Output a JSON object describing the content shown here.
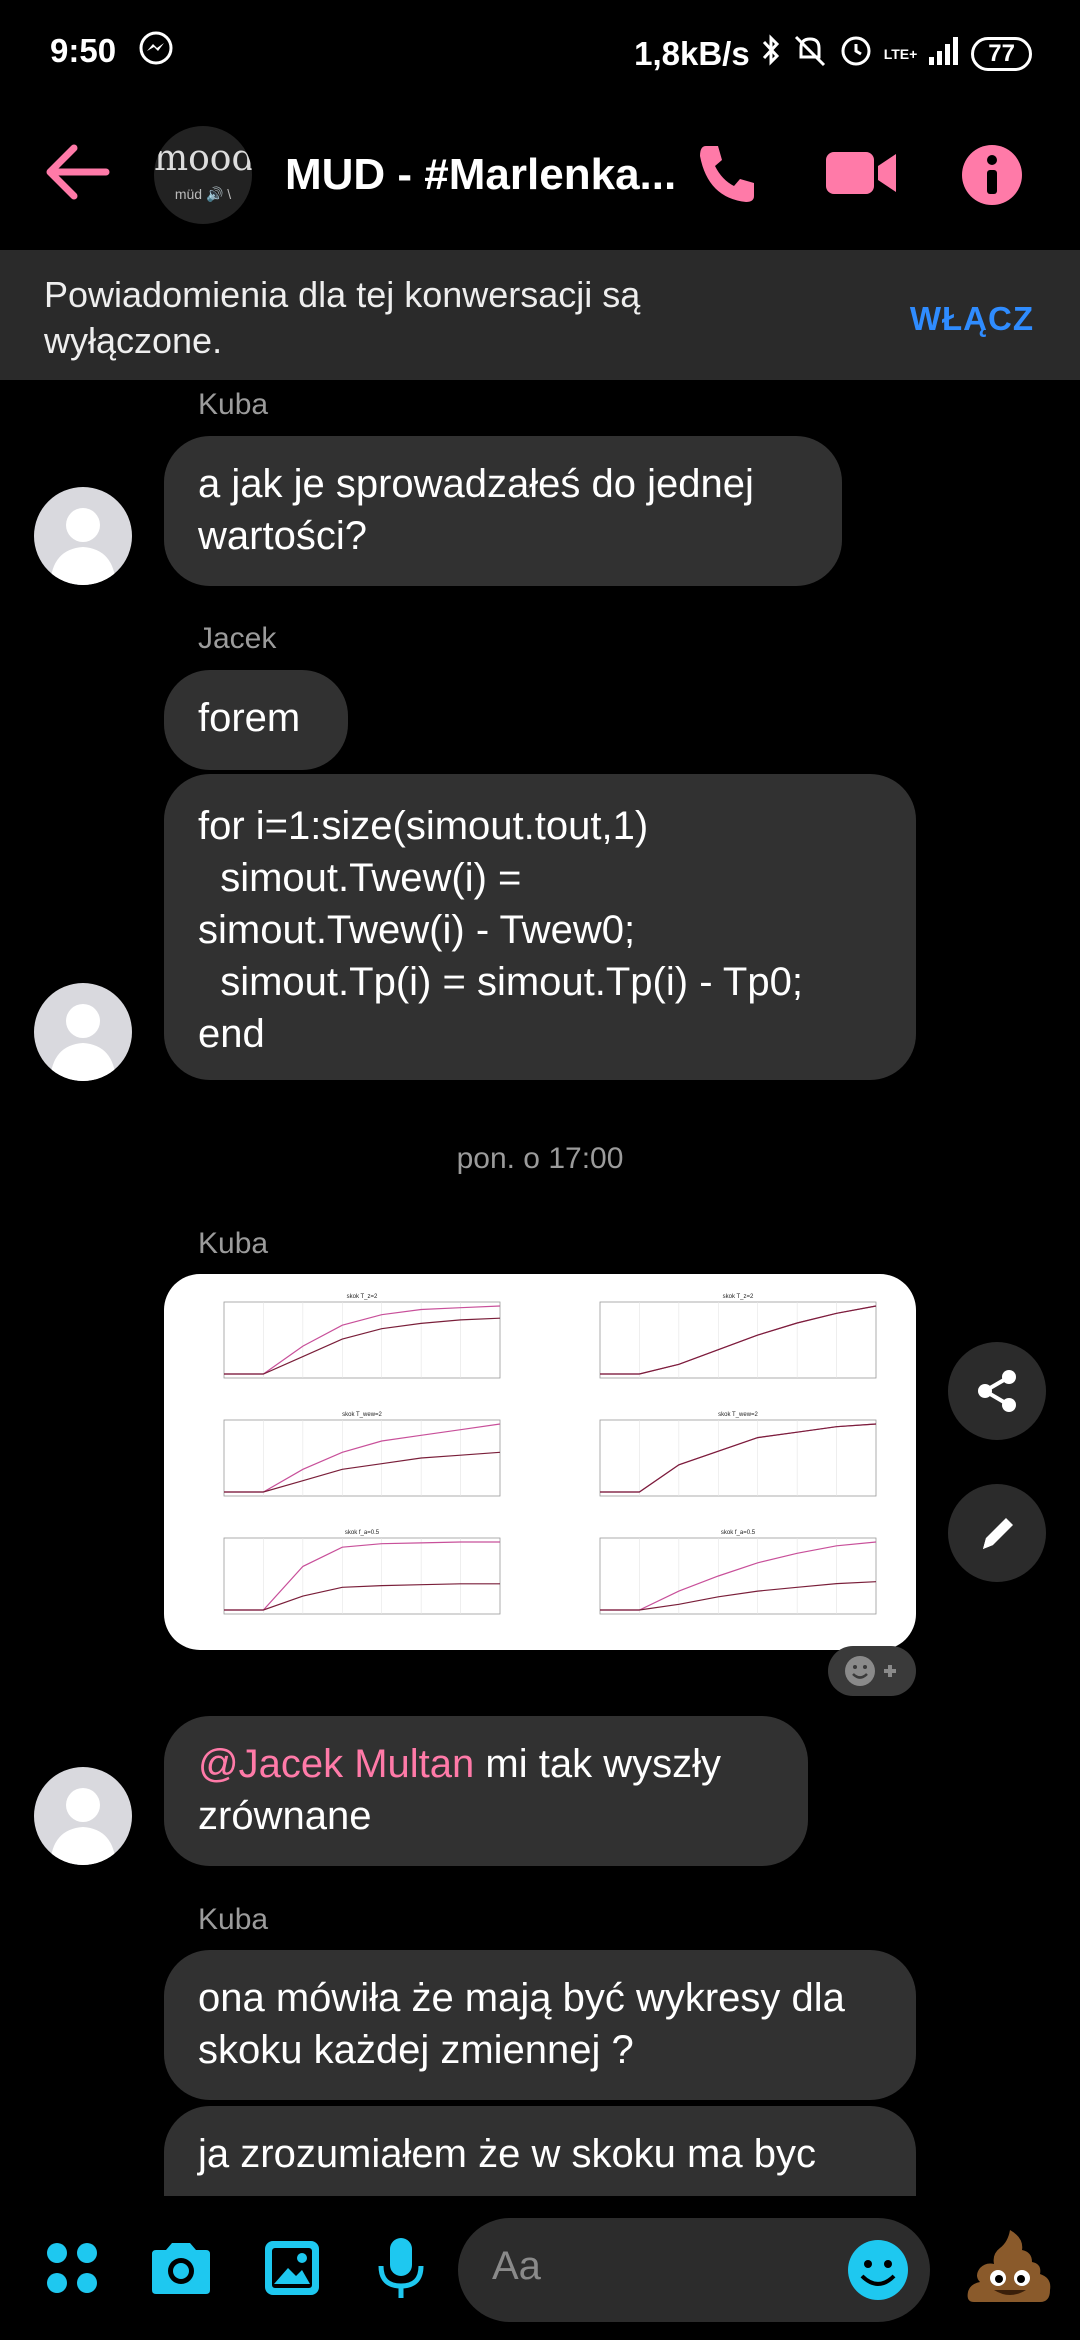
{
  "status_bar": {
    "time": "9:50",
    "network_speed": "1,8kB/s",
    "network_type": "LTE+",
    "battery": "77"
  },
  "header": {
    "title": "MUD - #Marlenka...",
    "avatar_top": "mood",
    "avatar_bottom": "müd 🔊 \\"
  },
  "banner": {
    "text": "Powiadomienia dla tej konwersacji są wyłączone.",
    "button": "WŁĄCZ"
  },
  "messages": {
    "sender_kuba_1": "Kuba",
    "msg1": "a jak je sprowadzałeś do jednej wartości?",
    "sender_jacek": "Jacek",
    "msg2": "forem",
    "msg3_lines": [
      "for i=1:size(simout.tout,1)",
      "  simout.Twew(i) =",
      "simout.Twew(i) - Twew0;",
      "  simout.Tp(i) = simout.Tp(i) - Tp0;",
      "end"
    ],
    "timestamp": "pon. o 17:00",
    "sender_kuba_2": "Kuba",
    "msg4_mention": "@Jacek Multan",
    "msg4_text": " mi tak wyszły zrównane",
    "sender_kuba_3": "Kuba",
    "msg5": "ona  mówiła że mają być wykresy dla skoku każdej zmiennej ?",
    "msg6": "ja zrozumiałem że w skoku ma byc"
  },
  "composer": {
    "placeholder": "Aa"
  },
  "colors": {
    "accent": "#ff7aa8",
    "blue_icons": "#1ec8f0",
    "bubble": "#313131",
    "banner_button": "#2f8cff"
  },
  "chart_data": [
    {
      "type": "line",
      "title": "skok T_z=2",
      "series": [
        {
          "values": [
            20,
            20,
            20.8,
            21.4,
            21.7,
            21.85,
            21.9,
            21.95
          ]
        },
        {
          "values": [
            20,
            20,
            20.5,
            21.0,
            21.3,
            21.45,
            21.55,
            21.6
          ]
        }
      ]
    },
    {
      "type": "line",
      "title": "skok T_z=2",
      "series": [
        {
          "values": [
            0,
            0,
            2,
            5,
            8,
            10.5,
            12.5,
            14
          ]
        },
        {
          "values": [
            0,
            0,
            2,
            5,
            8,
            10.5,
            12.5,
            14
          ]
        }
      ]
    },
    {
      "type": "line",
      "title": "skok T_wew=2",
      "series": [
        {
          "values": [
            21,
            21,
            21.04,
            21.07,
            21.09,
            21.1,
            21.11,
            21.12
          ]
        },
        {
          "values": [
            21,
            21,
            21.02,
            21.04,
            21.05,
            21.06,
            21.065,
            21.07
          ]
        }
      ]
    },
    {
      "type": "line",
      "title": "skok T_wew=2",
      "series": [
        {
          "values": [
            20,
            20,
            20.1,
            20.15,
            20.2,
            20.22,
            20.24,
            20.25
          ]
        },
        {
          "values": [
            20,
            20,
            20.1,
            20.15,
            20.2,
            20.22,
            20.24,
            20.25
          ]
        }
      ]
    },
    {
      "type": "line",
      "title": "skok f_a=0.5",
      "series": [
        {
          "values": [
            21,
            21,
            23.5,
            24.6,
            24.8,
            24.85,
            24.9,
            24.9
          ]
        },
        {
          "values": [
            21,
            21,
            21.8,
            22.3,
            22.4,
            22.45,
            22.5,
            22.5
          ]
        }
      ]
    },
    {
      "type": "line",
      "title": "skok f_a=0.5",
      "series": [
        {
          "values": [
            15,
            15,
            25,
            33,
            40,
            45,
            49,
            51
          ]
        },
        {
          "values": [
            15,
            15,
            18,
            22,
            25,
            27,
            29,
            30
          ]
        }
      ]
    }
  ]
}
